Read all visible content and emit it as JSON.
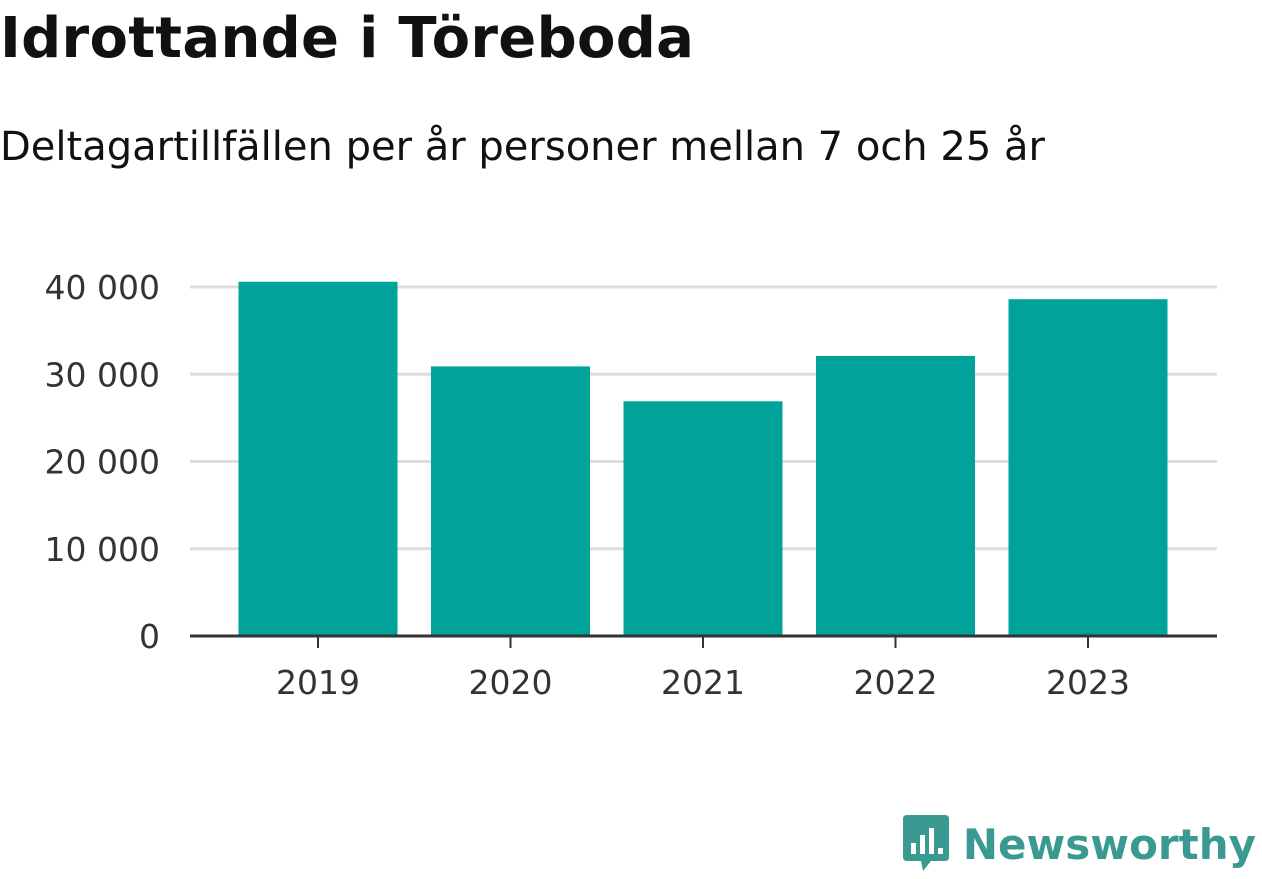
{
  "header": {
    "title": "Idrottande i Töreboda",
    "subtitle": "Deltagartillfällen per år personer mellan 7 och 25 år"
  },
  "brand": {
    "name": "Newsworthy",
    "icon": "newsworthy-logo-icon",
    "color": "#3a9a92"
  },
  "colors": {
    "bar": "#00a39a",
    "grid": "#dddddd",
    "axis": "#333333",
    "text": "#333333"
  },
  "chart_data": {
    "type": "bar",
    "categories": [
      "2019",
      "2020",
      "2021",
      "2022",
      "2023"
    ],
    "values": [
      40600,
      30900,
      26900,
      32100,
      38600
    ],
    "ylim": [
      0,
      40000
    ],
    "yticks": [
      0,
      10000,
      20000,
      30000,
      40000
    ],
    "ytick_labels": [
      "0",
      "10 000",
      "20 000",
      "30 000",
      "40 000"
    ],
    "grid": true,
    "legend": "none",
    "xlabel": "",
    "ylabel": ""
  }
}
